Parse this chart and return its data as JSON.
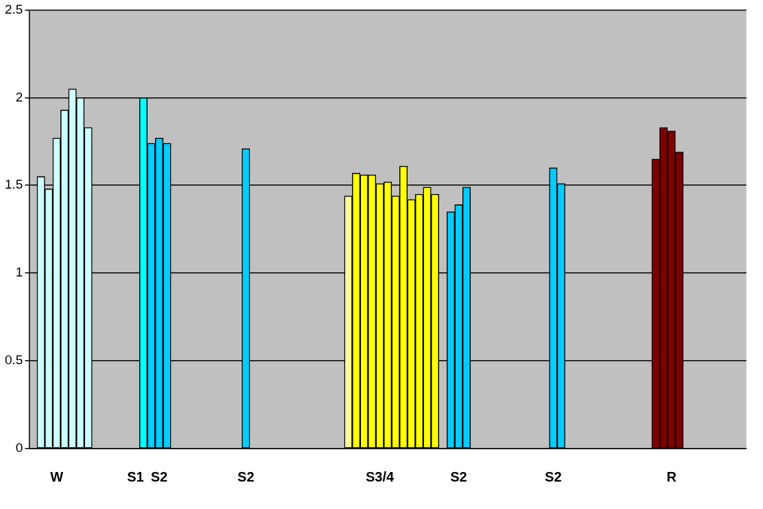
{
  "chart_data": {
    "type": "bar",
    "categories": [
      null,
      null,
      null,
      "W",
      null,
      null,
      null,
      null,
      null,
      null,
      null,
      null,
      null,
      "S1",
      null,
      null,
      "S2",
      null,
      null,
      null,
      null,
      null,
      null,
      null,
      null,
      null,
      null,
      "S2",
      null,
      null,
      null,
      null,
      null,
      null,
      null,
      null,
      null,
      null,
      null,
      null,
      null,
      null,
      null,
      null,
      "S3/4",
      null,
      null,
      null,
      null,
      null,
      null,
      null,
      null,
      null,
      "S2",
      null,
      null,
      null,
      null,
      null,
      null,
      null,
      null,
      null,
      null,
      null,
      "S2",
      null,
      null,
      null,
      null,
      null,
      null,
      null,
      null,
      null,
      null,
      null,
      null,
      null,
      null,
      "R",
      null,
      null,
      null,
      null,
      null,
      null,
      null,
      null,
      null
    ],
    "values": [
      null,
      1.55,
      1.48,
      1.77,
      1.93,
      2.05,
      2.0,
      1.83,
      null,
      null,
      null,
      null,
      null,
      null,
      2.0,
      1.74,
      1.77,
      1.74,
      null,
      null,
      null,
      null,
      null,
      null,
      null,
      null,
      null,
      1.71,
      null,
      null,
      null,
      null,
      null,
      null,
      null,
      null,
      null,
      null,
      null,
      null,
      1.44,
      1.57,
      1.56,
      1.56,
      1.51,
      1.52,
      1.44,
      1.61,
      1.42,
      1.45,
      1.49,
      1.45,
      null,
      1.35,
      1.39,
      1.49,
      null,
      null,
      null,
      null,
      null,
      null,
      null,
      null,
      null,
      null,
      1.6,
      1.51,
      null,
      null,
      null,
      null,
      null,
      null,
      null,
      null,
      null,
      null,
      null,
      1.65,
      1.83,
      1.81,
      1.69,
      null,
      null,
      null,
      null,
      null,
      null,
      null,
      null
    ],
    "colors": [
      "#ccffff",
      "#ccffff",
      "#ccffff",
      "#ccffff",
      "#ccffff",
      "#ccffff",
      "#ccffff",
      "#ccffff",
      "#ccffff",
      "#ccffff",
      "#ccffff",
      "#ccffff",
      "#ccffff",
      "#00ffff",
      "#00ffff",
      "#00ccff",
      "#00ccff",
      "#00ccff",
      "#00ccff",
      "#00ccff",
      "#00ccff",
      "#00ccff",
      "#00ccff",
      "#00ccff",
      "#00ccff",
      "#00ccff",
      "#00ccff",
      "#00ccff",
      "#00ccff",
      "#00ccff",
      "#00ccff",
      "#00ccff",
      "#00ccff",
      "#00ccff",
      "#00ccff",
      "#00ccff",
      "#00ccff",
      "#00ccff",
      "#00ccff",
      "#ffff99",
      "#ffff99",
      "#ffff00",
      "#ffff00",
      "#ffff00",
      "#ffff00",
      "#ffff00",
      "#ffff00",
      "#ffff00",
      "#ffff00",
      "#ffff00",
      "#ffff00",
      "#ffff00",
      "#00ccff",
      "#00ccff",
      "#00ccff",
      "#00ccff",
      "#00ccff",
      "#00ccff",
      "#00ccff",
      "#00ccff",
      "#00ccff",
      "#00ccff",
      "#00ccff",
      "#00ccff",
      "#00ccff",
      "#00ccff",
      "#00ccff",
      "#00ccff",
      "#00ccff",
      "#00ccff",
      "#00ccff",
      "#00ccff",
      "#00ccff",
      "#00ccff",
      "#00ccff",
      "#00ccff",
      "#00ccff",
      "#00ccff",
      "#800000",
      "#800000",
      "#800000",
      "#800000",
      "#800000",
      "#800000",
      "#800000",
      "#800000",
      "#800000",
      "#800000",
      "#800000",
      "#800000",
      "#800000"
    ],
    "ylim": [
      0,
      2.5
    ],
    "yticks": [
      0,
      0.5,
      1,
      1.5,
      2,
      2.5
    ],
    "grid": "y",
    "legend": false
  }
}
